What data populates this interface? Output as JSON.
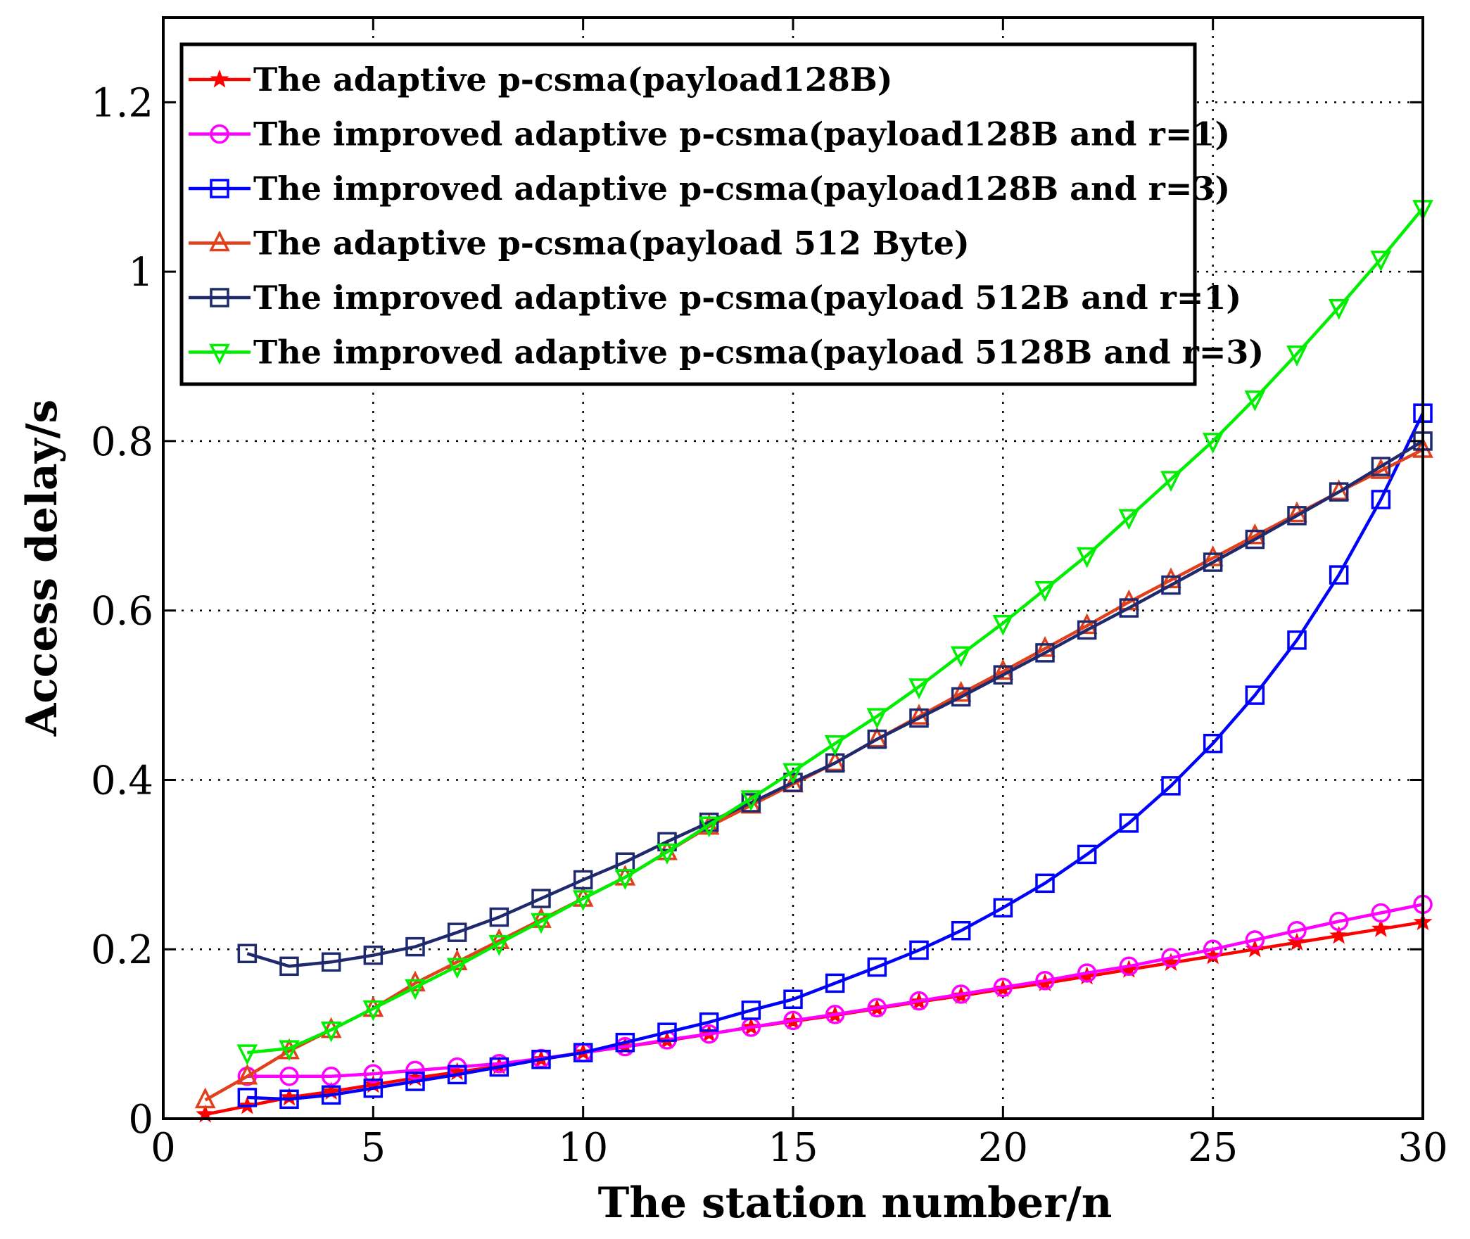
{
  "chart_data": {
    "type": "line",
    "title": "",
    "xlabel": "The station number/n",
    "ylabel": "Access delay/s",
    "xlim": [
      0,
      30
    ],
    "ylim": [
      0,
      1.3
    ],
    "xticks": [
      0,
      5,
      10,
      15,
      20,
      25,
      30
    ],
    "yticks": [
      0,
      0.2,
      0.4,
      0.6,
      0.8,
      1,
      1.2
    ],
    "xtick_labels": [
      "0",
      "5",
      "10",
      "15",
      "20",
      "25",
      "30"
    ],
    "ytick_labels": [
      "0",
      "0.2",
      "0.4",
      "0.6",
      "0.8",
      "1",
      "1.2"
    ],
    "grid": true,
    "legend_position": "top-left",
    "series": [
      {
        "name": "The adaptive p-csma(payload128B)",
        "color": "#ff0000",
        "marker": "star",
        "x": [
          1,
          2,
          3,
          4,
          5,
          6,
          7,
          8,
          9,
          10,
          11,
          12,
          13,
          14,
          15,
          16,
          17,
          18,
          19,
          20,
          21,
          22,
          23,
          24,
          25,
          26,
          27,
          28,
          29,
          30
        ],
        "values": [
          0.005,
          0.015,
          0.025,
          0.032,
          0.04,
          0.048,
          0.055,
          0.062,
          0.07,
          0.078,
          0.085,
          0.092,
          0.1,
          0.108,
          0.115,
          0.122,
          0.13,
          0.138,
          0.145,
          0.153,
          0.16,
          0.168,
          0.176,
          0.184,
          0.192,
          0.2,
          0.208,
          0.216,
          0.224,
          0.232
        ]
      },
      {
        "name": "The improved adaptive p-csma(payload128B and r=1)",
        "color": "#ff00ff",
        "marker": "circle",
        "x": [
          2,
          3,
          4,
          5,
          6,
          7,
          8,
          9,
          10,
          11,
          12,
          13,
          14,
          15,
          16,
          17,
          18,
          19,
          20,
          21,
          22,
          23,
          24,
          25,
          26,
          27,
          28,
          29,
          30
        ],
        "values": [
          0.05,
          0.05,
          0.05,
          0.053,
          0.057,
          0.061,
          0.065,
          0.071,
          0.078,
          0.085,
          0.093,
          0.1,
          0.108,
          0.116,
          0.123,
          0.131,
          0.139,
          0.147,
          0.155,
          0.163,
          0.172,
          0.18,
          0.19,
          0.2,
          0.211,
          0.222,
          0.233,
          0.243,
          0.253
        ]
      },
      {
        "name": "The improved adaptive p-csma(payload128B  and r=3)",
        "color": "#0000ff",
        "marker": "square",
        "x": [
          2,
          3,
          4,
          5,
          6,
          7,
          8,
          9,
          10,
          11,
          12,
          13,
          14,
          15,
          16,
          17,
          18,
          19,
          20,
          21,
          22,
          23,
          24,
          25,
          26,
          27,
          28,
          29,
          30
        ],
        "values": [
          0.025,
          0.023,
          0.028,
          0.036,
          0.044,
          0.052,
          0.061,
          0.07,
          0.078,
          0.09,
          0.102,
          0.114,
          0.128,
          0.141,
          0.16,
          0.179,
          0.199,
          0.222,
          0.249,
          0.278,
          0.312,
          0.349,
          0.393,
          0.443,
          0.5,
          0.565,
          0.642,
          0.731,
          0.833
        ]
      },
      {
        "name": "The adaptive p-csma(payload 512 Byte)",
        "color": "#e0401b",
        "marker": "triangle-up",
        "x": [
          1,
          2,
          3,
          4,
          5,
          6,
          7,
          8,
          9,
          10,
          11,
          12,
          13,
          14,
          15,
          16,
          17,
          18,
          19,
          20,
          21,
          22,
          23,
          24,
          25,
          26,
          27,
          28,
          29,
          30
        ],
        "values": [
          0.022,
          0.05,
          0.08,
          0.105,
          0.13,
          0.16,
          0.185,
          0.21,
          0.235,
          0.26,
          0.285,
          0.315,
          0.345,
          0.37,
          0.395,
          0.42,
          0.448,
          0.475,
          0.502,
          0.528,
          0.555,
          0.582,
          0.61,
          0.636,
          0.662,
          0.688,
          0.714,
          0.74,
          0.765,
          0.79
        ]
      },
      {
        "name": "The improved adaptive p-csma(payload 512B and r=1)",
        "color": "#1f2a6e",
        "marker": "square",
        "x": [
          2,
          3,
          4,
          5,
          6,
          7,
          8,
          9,
          10,
          11,
          12,
          13,
          14,
          15,
          16,
          17,
          18,
          19,
          20,
          21,
          22,
          23,
          24,
          25,
          26,
          27,
          28,
          29,
          30
        ],
        "values": [
          0.195,
          0.18,
          0.185,
          0.193,
          0.203,
          0.22,
          0.238,
          0.26,
          0.282,
          0.303,
          0.327,
          0.35,
          0.373,
          0.397,
          0.42,
          0.448,
          0.473,
          0.498,
          0.524,
          0.55,
          0.577,
          0.603,
          0.63,
          0.657,
          0.684,
          0.712,
          0.74,
          0.77,
          0.8
        ]
      },
      {
        "name": "The improved adaptive p-csma(payload 5128B and r=3)",
        "color": "#00ee00",
        "marker": "triangle-down",
        "x": [
          2,
          3,
          4,
          5,
          6,
          7,
          8,
          9,
          10,
          11,
          12,
          13,
          14,
          15,
          16,
          17,
          18,
          19,
          20,
          21,
          22,
          23,
          24,
          25,
          26,
          27,
          28,
          29,
          30
        ],
        "values": [
          0.078,
          0.083,
          0.105,
          0.13,
          0.155,
          0.18,
          0.207,
          0.233,
          0.26,
          0.285,
          0.315,
          0.347,
          0.378,
          0.41,
          0.443,
          0.475,
          0.51,
          0.548,
          0.585,
          0.625,
          0.665,
          0.71,
          0.755,
          0.8,
          0.85,
          0.903,
          0.958,
          1.015,
          1.075
        ]
      }
    ]
  }
}
